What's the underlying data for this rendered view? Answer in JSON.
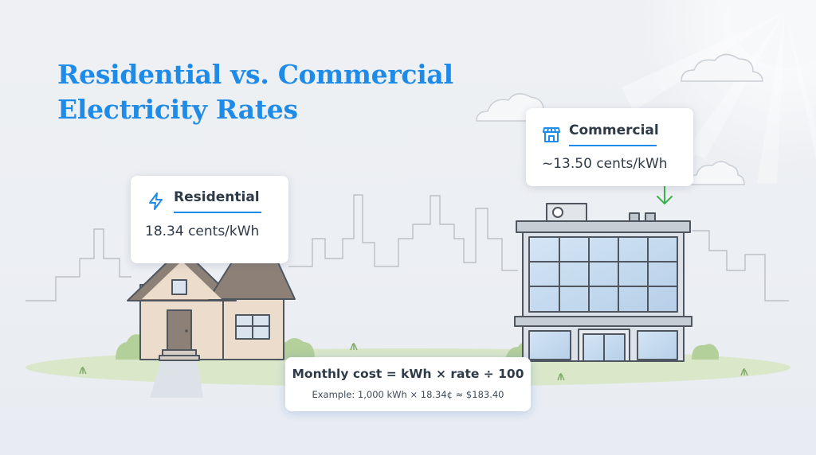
{
  "title": {
    "line1": "Residential vs. Commercial",
    "line2": "Electricity Rates"
  },
  "residential": {
    "label": "Residential",
    "rate": "18.34 cents/kWh",
    "icon": "lightning-bolt-icon"
  },
  "commercial": {
    "label": "Commercial",
    "rate": "~13.50 cents/kWh",
    "icon": "storefront-icon"
  },
  "formula": {
    "main": "Monthly cost = kWh × rate ÷ 100",
    "example": "Example: 1,000 kWh × 18.34¢ ≈ $183.40"
  },
  "colors": {
    "accent": "#1e8be8",
    "arrow": "#3cb04c",
    "ground": "#dbe7c9",
    "house_wall": "#ecdccb",
    "house_roof": "#8d8177",
    "building_glass": "#c6dcf0"
  }
}
